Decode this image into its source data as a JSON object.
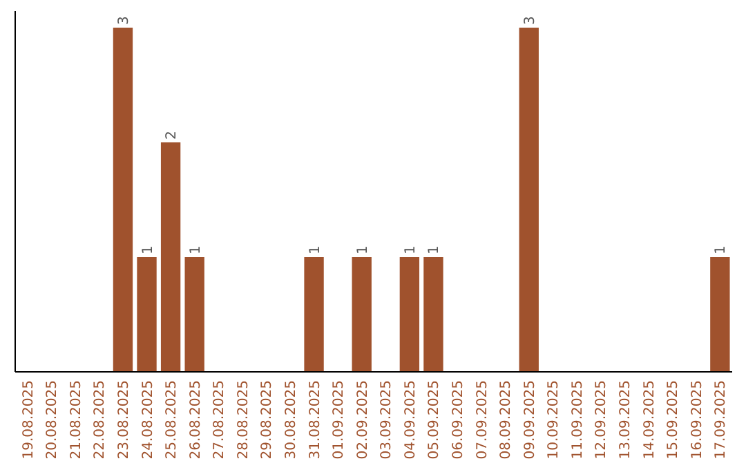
{
  "chart_data": {
    "type": "bar",
    "categories": [
      "19.08.2025",
      "20.08.2025",
      "21.08.2025",
      "22.08.2025",
      "23.08.2025",
      "24.08.2025",
      "25.08.2025",
      "26.08.2025",
      "27.08.2025",
      "28.08.2025",
      "29.08.2025",
      "30.08.2025",
      "31.08.2025",
      "01.09.2025",
      "02.09.2025",
      "03.09.2025",
      "04.09.2025",
      "05.09.2025",
      "06.09.2025",
      "07.09.2025",
      "08.09.2025",
      "09.09.2025",
      "10.09.2025",
      "11.09.2025",
      "12.09.2025",
      "13.09.2025",
      "14.09.2025",
      "15.09.2025",
      "16.09.2025",
      "17.09.2025"
    ],
    "values": [
      0,
      0,
      0,
      0,
      3,
      1,
      2,
      1,
      0,
      0,
      0,
      0,
      1,
      0,
      1,
      0,
      1,
      1,
      0,
      0,
      0,
      3,
      0,
      0,
      0,
      0,
      0,
      0,
      0,
      1
    ],
    "value_labels": [
      null,
      null,
      null,
      null,
      "3",
      "1",
      "2",
      "1",
      null,
      null,
      null,
      null,
      "1",
      null,
      "1",
      null,
      "1",
      "1",
      null,
      null,
      null,
      "3",
      null,
      null,
      null,
      null,
      null,
      null,
      null,
      "1"
    ],
    "color": "#a0522d",
    "relative": false
  }
}
